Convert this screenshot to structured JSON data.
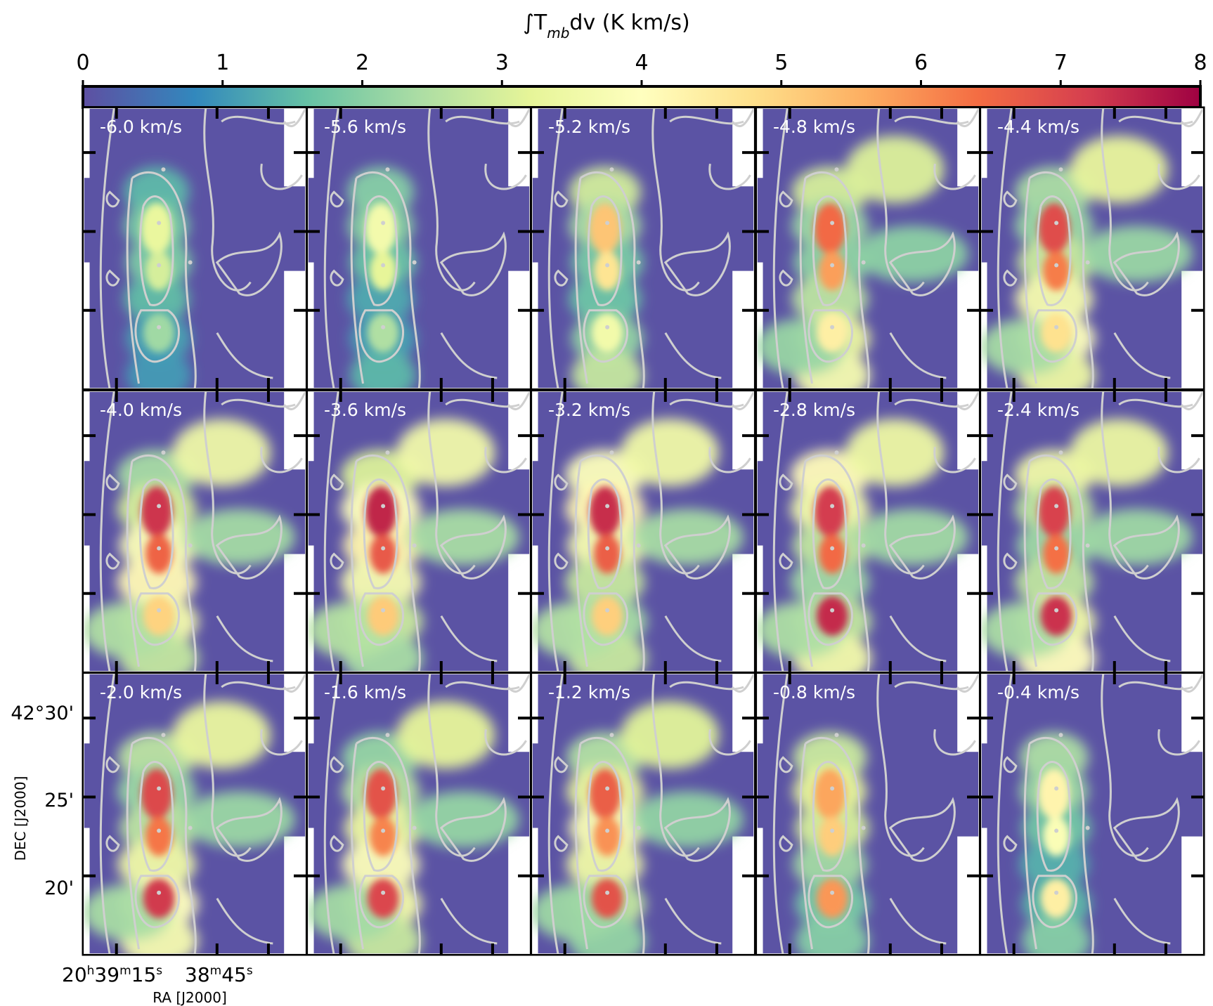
{
  "colorbar": {
    "label_main": "∫T",
    "label_sub": "mb",
    "label_rest": "dv (K km/s)",
    "ticks": [
      "0",
      "1",
      "2",
      "3",
      "4",
      "5",
      "6",
      "7",
      "8"
    ],
    "min": 0,
    "max": 8,
    "colormap": "Spectral_r",
    "stops": [
      "#5e4fa2",
      "#3288bd",
      "#66c2a5",
      "#abdda4",
      "#e6f598",
      "#ffffbf",
      "#fee08b",
      "#fdae61",
      "#f46d43",
      "#d53e4f",
      "#9e0142"
    ]
  },
  "axes": {
    "ylabel": "DEC [J2000]",
    "xlabel": "RA [J2000]",
    "yticks": [
      "42°30'",
      "25'",
      "20'"
    ],
    "xtick_left": {
      "h": "20",
      "h_sup": "h",
      "d": "39",
      "d_sup": "m",
      "s": "15",
      "s_sup": "s"
    },
    "xtick_right": {
      "m": "38",
      "m_sup": "m",
      "s": "45",
      "s_sup": "s"
    }
  },
  "chart_data": {
    "type": "heatmap",
    "title": "",
    "value_unit": "K km/s",
    "vmin": 0,
    "vmax": 8,
    "panels": [
      {
        "label": "-6.0 km/s",
        "velocity": -6.0,
        "peak": 3.5
      },
      {
        "label": "-5.6 km/s",
        "velocity": -5.6,
        "peak": 3.8
      },
      {
        "label": "-5.2 km/s",
        "velocity": -5.2,
        "peak": 5.5
      },
      {
        "label": "-4.8 km/s",
        "velocity": -4.8,
        "peak": 6.8
      },
      {
        "label": "-4.4 km/s",
        "velocity": -4.4,
        "peak": 7.3
      },
      {
        "label": "-4.0 km/s",
        "velocity": -4.0,
        "peak": 7.7
      },
      {
        "label": "-3.6 km/s",
        "velocity": -3.6,
        "peak": 7.9
      },
      {
        "label": "-3.2 km/s",
        "velocity": -3.2,
        "peak": 7.8
      },
      {
        "label": "-2.8 km/s",
        "velocity": -2.8,
        "peak": 7.6
      },
      {
        "label": "-2.4 km/s",
        "velocity": -2.4,
        "peak": 7.5
      },
      {
        "label": "-2.0 km/s",
        "velocity": -2.0,
        "peak": 7.4
      },
      {
        "label": "-1.6 km/s",
        "velocity": -1.6,
        "peak": 7.2
      },
      {
        "label": "-1.2 km/s",
        "velocity": -1.2,
        "peak": 7.0
      },
      {
        "label": "-0.8 km/s",
        "velocity": -0.8,
        "peak": 6.0
      },
      {
        "label": "-0.4 km/s",
        "velocity": -0.4,
        "peak": 4.5
      }
    ]
  }
}
